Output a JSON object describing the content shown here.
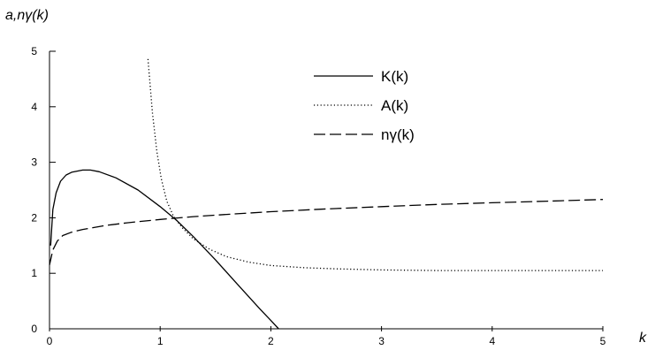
{
  "chart_data": {
    "type": "line",
    "title": "",
    "ylabel": "a,nγ(k)",
    "xlabel": "k",
    "xlim": [
      0,
      5
    ],
    "ylim": [
      0,
      5
    ],
    "x_ticks": [
      "0",
      "1",
      "2",
      "3",
      "4",
      "5"
    ],
    "y_ticks": [
      "0",
      "1",
      "2",
      "3",
      "4",
      "5"
    ],
    "grid": false,
    "legend_position": "top-right",
    "series": [
      {
        "name": "K(k)",
        "line_style": "solid",
        "x": [
          0.01,
          0.03,
          0.06,
          0.1,
          0.15,
          0.2,
          0.3,
          0.37,
          0.45,
          0.6,
          0.8,
          1.0,
          1.15,
          1.3,
          1.5,
          1.7,
          1.9,
          2.0,
          2.07
        ],
        "y": [
          1.5,
          2.15,
          2.45,
          2.66,
          2.77,
          2.82,
          2.86,
          2.86,
          2.83,
          2.72,
          2.5,
          2.2,
          1.95,
          1.66,
          1.24,
          0.8,
          0.36,
          0.15,
          0.0
        ]
      },
      {
        "name": "A(k)",
        "line_style": "dotted",
        "x": [
          0.89,
          0.93,
          0.97,
          1.01,
          1.06,
          1.12,
          1.2,
          1.3,
          1.45,
          1.6,
          1.8,
          2.0,
          2.3,
          2.6,
          3.0,
          3.5,
          4.0,
          4.5,
          5.0
        ],
        "y": [
          4.86,
          3.9,
          3.2,
          2.7,
          2.3,
          2.03,
          1.82,
          1.62,
          1.43,
          1.3,
          1.2,
          1.14,
          1.1,
          1.08,
          1.06,
          1.05,
          1.05,
          1.05,
          1.05
        ]
      },
      {
        "name": "nγ(k)",
        "line_style": "dashed",
        "x": [
          0.0,
          0.03,
          0.07,
          0.12,
          0.2,
          0.3,
          0.5,
          0.7,
          1.0,
          1.3,
          1.6,
          2.0,
          2.5,
          3.0,
          3.5,
          4.0,
          4.5,
          5.0
        ],
        "y": [
          1.15,
          1.42,
          1.58,
          1.68,
          1.74,
          1.79,
          1.86,
          1.91,
          1.97,
          2.02,
          2.06,
          2.11,
          2.16,
          2.2,
          2.24,
          2.27,
          2.3,
          2.33
        ]
      }
    ],
    "legend": {
      "entries": [
        {
          "label": "K(k)",
          "line_style": "solid"
        },
        {
          "label": "A(k)",
          "line_style": "dotted"
        },
        {
          "label": "nγ(k)",
          "line_style": "dashed"
        }
      ]
    },
    "colors": {
      "line": "#000000",
      "axis": "#000000"
    }
  }
}
